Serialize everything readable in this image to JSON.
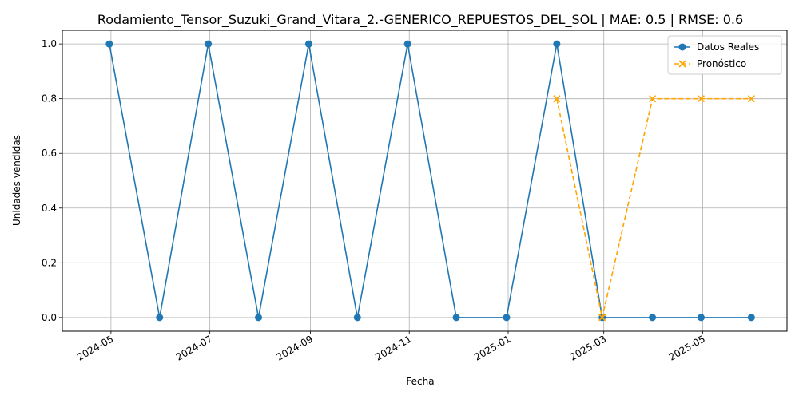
{
  "chart_data": {
    "type": "line",
    "title": "Rodamiento_Tensor_Suzuki_Grand_Vitara_2.-GENERICO_REPUESTOS_DEL_SOL | MAE: 0.5 | RMSE: 0.6",
    "xlabel": "Fecha",
    "ylabel": "Unidades vendidas",
    "xlim": [
      "2024-04-01",
      "2025-06-22"
    ],
    "ylim": [
      -0.05,
      1.05
    ],
    "grid": true,
    "legend_position": "top-right",
    "x_ticks": [
      "2024-05",
      "2024-07",
      "2024-09",
      "2024-11",
      "2025-01",
      "2025-03",
      "2025-05"
    ],
    "x_tick_dates": [
      "2024-05-01",
      "2024-07-01",
      "2024-09-01",
      "2024-11-01",
      "2025-01-01",
      "2025-03-01",
      "2025-05-01"
    ],
    "y_ticks": [
      "0.0",
      "0.2",
      "0.4",
      "0.6",
      "0.8",
      "1.0"
    ],
    "y_tick_values": [
      0.0,
      0.2,
      0.4,
      0.6,
      0.8,
      1.0
    ],
    "series": [
      {
        "name": "Datos Reales",
        "color": "#1f77b4",
        "marker": "circle",
        "line_style": "solid",
        "x": [
          "2024-04-30",
          "2024-05-31",
          "2024-06-30",
          "2024-07-31",
          "2024-08-31",
          "2024-09-30",
          "2024-10-31",
          "2024-11-30",
          "2024-12-31",
          "2025-01-31",
          "2025-02-28",
          "2025-03-31",
          "2025-04-30",
          "2025-05-31"
        ],
        "values": [
          1,
          0,
          1,
          0,
          1,
          0,
          1,
          0,
          0,
          1,
          0,
          0,
          0,
          0
        ]
      },
      {
        "name": "Pronóstico",
        "color": "#ffa500",
        "marker": "x",
        "line_style": "dashed",
        "x": [
          "2025-01-31",
          "2025-02-28",
          "2025-03-31",
          "2025-04-30",
          "2025-05-31"
        ],
        "values": [
          0.8,
          0.0,
          0.8,
          0.8,
          0.8
        ]
      }
    ]
  }
}
